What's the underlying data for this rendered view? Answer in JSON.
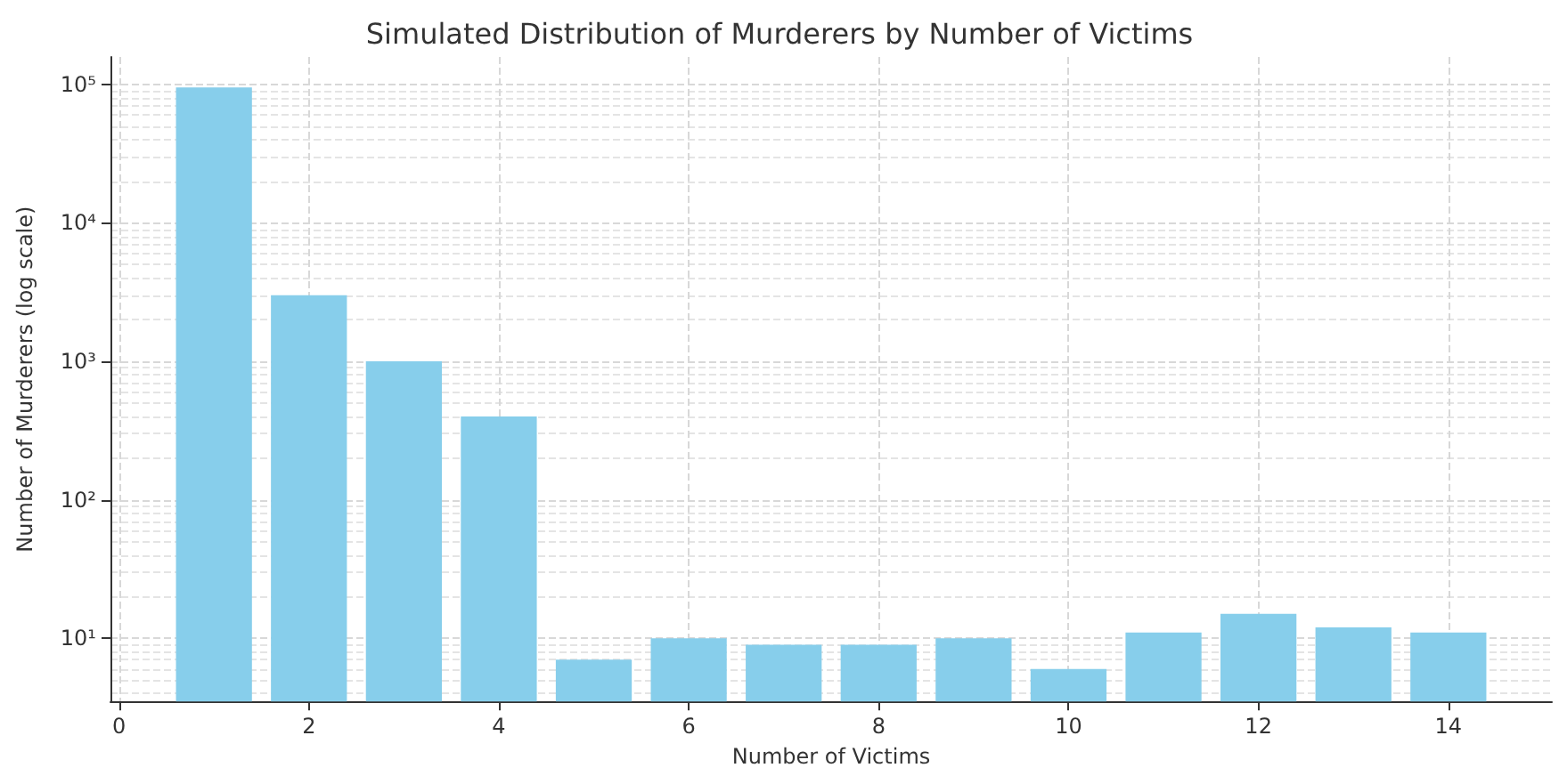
{
  "chart_data": {
    "type": "bar",
    "title": "Simulated Distribution of Murderers by Number of Victims",
    "xlabel": "Number of Victims",
    "ylabel": "Number of Murderers (log scale)",
    "x": [
      1,
      2,
      3,
      4,
      5,
      6,
      7,
      8,
      9,
      10,
      11,
      12,
      13,
      14
    ],
    "values": [
      95000,
      3000,
      1000,
      400,
      7,
      10,
      9,
      9,
      10,
      6,
      11,
      15,
      12,
      11
    ],
    "color": "#87ceeb",
    "log": "y",
    "xlim": [
      -0.09,
      15.09
    ],
    "xticks": [
      0,
      2,
      4,
      6,
      8,
      10,
      12,
      14
    ],
    "ylim": [
      3.5,
      158000
    ],
    "yticks": [
      {
        "value": 10,
        "label": "10¹"
      },
      {
        "value": 100,
        "label": "10²"
      },
      {
        "value": 1000,
        "label": "10³"
      },
      {
        "value": 10000,
        "label": "10⁴"
      },
      {
        "value": 100000,
        "label": "10⁵"
      }
    ],
    "grid": true
  }
}
